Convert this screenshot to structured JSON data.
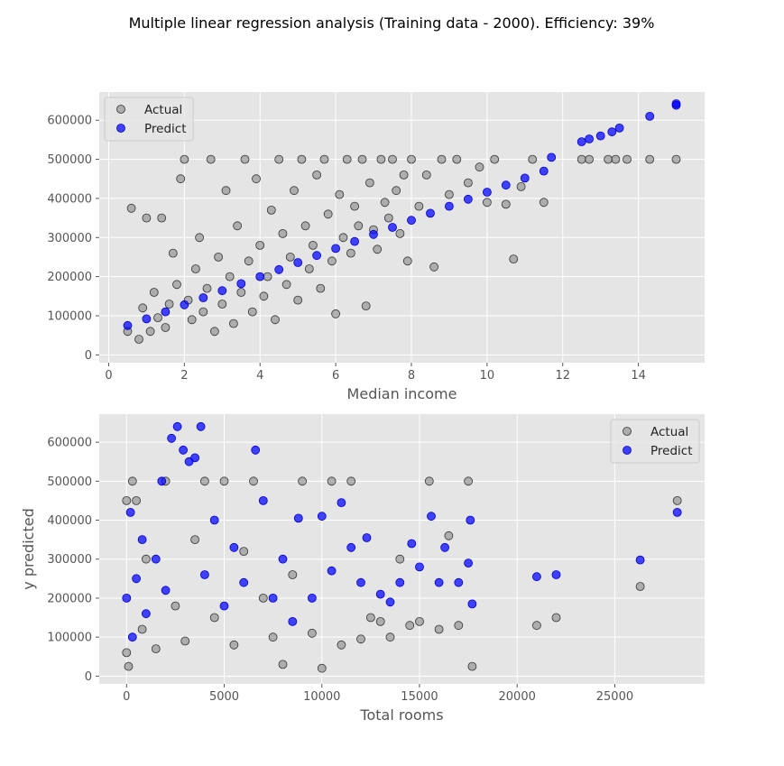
{
  "title": "Multiple linear regression analysis (Training data - 2000). Efficiency: 39%",
  "colors": {
    "actual": "#808080",
    "predict": "#0000ff",
    "panel": "#e5e5e5",
    "grid": "#ffffff"
  },
  "chart_data": [
    {
      "type": "scatter",
      "xlabel": "Median income",
      "ylabel": "",
      "xlim": [
        -0.25,
        15.75
      ],
      "ylim": [
        -20000,
        672000
      ],
      "xticks": [
        0,
        2,
        4,
        6,
        8,
        10,
        12,
        14
      ],
      "yticks": [
        0,
        100000,
        200000,
        300000,
        400000,
        500000,
        600000
      ],
      "xtick_labels": [
        "0",
        "2",
        "4",
        "6",
        "8",
        "10",
        "12",
        "14"
      ],
      "ytick_labels": [
        "0",
        "100000",
        "200000",
        "300000",
        "400000",
        "500000",
        "600000"
      ],
      "legend": {
        "position": "top-left",
        "entries": [
          "Actual",
          "Predict"
        ]
      },
      "grid": true,
      "series": [
        {
          "name": "Actual",
          "color": "#808080",
          "points": [
            [
              0.5,
              60000
            ],
            [
              0.6,
              375000
            ],
            [
              0.8,
              40000
            ],
            [
              0.9,
              120000
            ],
            [
              1.0,
              350000
            ],
            [
              1.1,
              60000
            ],
            [
              1.2,
              160000
            ],
            [
              1.3,
              95000
            ],
            [
              1.4,
              350000
            ],
            [
              1.5,
              70000
            ],
            [
              1.6,
              130000
            ],
            [
              1.7,
              260000
            ],
            [
              1.8,
              180000
            ],
            [
              1.9,
              450000
            ],
            [
              2.0,
              500000
            ],
            [
              2.1,
              140000
            ],
            [
              2.2,
              90000
            ],
            [
              2.3,
              220000
            ],
            [
              2.4,
              300000
            ],
            [
              2.5,
              110000
            ],
            [
              2.6,
              170000
            ],
            [
              2.7,
              500000
            ],
            [
              2.8,
              60000
            ],
            [
              2.9,
              250000
            ],
            [
              3.0,
              130000
            ],
            [
              3.1,
              420000
            ],
            [
              3.2,
              200000
            ],
            [
              3.3,
              80000
            ],
            [
              3.4,
              330000
            ],
            [
              3.5,
              160000
            ],
            [
              3.6,
              500000
            ],
            [
              3.7,
              240000
            ],
            [
              3.8,
              110000
            ],
            [
              3.9,
              450000
            ],
            [
              4.0,
              280000
            ],
            [
              4.1,
              150000
            ],
            [
              4.2,
              200000
            ],
            [
              4.3,
              370000
            ],
            [
              4.4,
              90000
            ],
            [
              4.5,
              500000
            ],
            [
              4.6,
              310000
            ],
            [
              4.7,
              180000
            ],
            [
              4.8,
              250000
            ],
            [
              4.9,
              420000
            ],
            [
              5.0,
              140000
            ],
            [
              5.1,
              500000
            ],
            [
              5.2,
              330000
            ],
            [
              5.3,
              220000
            ],
            [
              5.4,
              280000
            ],
            [
              5.5,
              460000
            ],
            [
              5.6,
              170000
            ],
            [
              5.7,
              500000
            ],
            [
              5.8,
              360000
            ],
            [
              5.9,
              240000
            ],
            [
              6.0,
              105000
            ],
            [
              6.1,
              410000
            ],
            [
              6.2,
              300000
            ],
            [
              6.3,
              500000
            ],
            [
              6.4,
              260000
            ],
            [
              6.5,
              380000
            ],
            [
              6.6,
              330000
            ],
            [
              6.7,
              500000
            ],
            [
              6.8,
              125000
            ],
            [
              6.9,
              440000
            ],
            [
              7.0,
              320000
            ],
            [
              7.1,
              270000
            ],
            [
              7.2,
              500000
            ],
            [
              7.3,
              390000
            ],
            [
              7.4,
              350000
            ],
            [
              7.5,
              500000
            ],
            [
              7.6,
              420000
            ],
            [
              7.7,
              310000
            ],
            [
              7.8,
              460000
            ],
            [
              7.9,
              240000
            ],
            [
              8.0,
              500000
            ],
            [
              8.2,
              380000
            ],
            [
              8.4,
              460000
            ],
            [
              8.6,
              225000
            ],
            [
              8.8,
              500000
            ],
            [
              9.0,
              410000
            ],
            [
              9.2,
              500000
            ],
            [
              9.5,
              440000
            ],
            [
              9.8,
              480000
            ],
            [
              10.0,
              390000
            ],
            [
              10.2,
              500000
            ],
            [
              10.5,
              385000
            ],
            [
              10.7,
              245000
            ],
            [
              10.9,
              430000
            ],
            [
              11.2,
              500000
            ],
            [
              11.5,
              390000
            ],
            [
              12.5,
              500000
            ],
            [
              12.7,
              500000
            ],
            [
              13.2,
              500000
            ],
            [
              13.4,
              500000
            ],
            [
              13.7,
              500000
            ],
            [
              14.3,
              500000
            ],
            [
              15.0,
              500000
            ]
          ]
        },
        {
          "name": "Predict",
          "color": "#0000ff",
          "points": [
            [
              0.5,
              75000
            ],
            [
              1.0,
              92000
            ],
            [
              1.5,
              110000
            ],
            [
              2.0,
              128000
            ],
            [
              2.5,
              146000
            ],
            [
              3.0,
              164000
            ],
            [
              3.5,
              182000
            ],
            [
              4.0,
              200000
            ],
            [
              4.5,
              218000
            ],
            [
              5.0,
              236000
            ],
            [
              5.5,
              254000
            ],
            [
              6.0,
              272000
            ],
            [
              6.5,
              290000
            ],
            [
              7.0,
              308000
            ],
            [
              7.5,
              326000
            ],
            [
              8.0,
              344000
            ],
            [
              8.5,
              362000
            ],
            [
              9.0,
              380000
            ],
            [
              9.5,
              398000
            ],
            [
              10.0,
              416000
            ],
            [
              10.5,
              434000
            ],
            [
              11.0,
              452000
            ],
            [
              11.5,
              470000
            ],
            [
              11.7,
              505000
            ],
            [
              12.5,
              545000
            ],
            [
              12.7,
              552000
            ],
            [
              13.0,
              560000
            ],
            [
              13.3,
              570000
            ],
            [
              13.5,
              580000
            ],
            [
              14.3,
              610000
            ],
            [
              15.0,
              638000
            ],
            [
              15.0,
              642000
            ]
          ]
        }
      ]
    },
    {
      "type": "scatter",
      "xlabel": "Total rooms",
      "ylabel": "y predicted",
      "xlim": [
        -1400,
        29600
      ],
      "ylim": [
        -20000,
        672000
      ],
      "xticks": [
        0,
        5000,
        10000,
        15000,
        20000,
        25000
      ],
      "yticks": [
        0,
        100000,
        200000,
        300000,
        400000,
        500000,
        600000
      ],
      "xtick_labels": [
        "0",
        "5000",
        "10000",
        "15000",
        "20000",
        "25000"
      ],
      "ytick_labels": [
        "0",
        "100000",
        "200000",
        "300000",
        "400000",
        "500000",
        "600000"
      ],
      "legend": {
        "position": "top-right",
        "entries": [
          "Actual",
          "Predict"
        ]
      },
      "grid": true,
      "series": [
        {
          "name": "Actual",
          "color": "#808080",
          "points": [
            [
              0,
              450000
            ],
            [
              0,
              60000
            ],
            [
              100,
              25000
            ],
            [
              300,
              500000
            ],
            [
              500,
              450000
            ],
            [
              800,
              120000
            ],
            [
              1000,
              300000
            ],
            [
              1500,
              70000
            ],
            [
              2000,
              500000
            ],
            [
              2500,
              180000
            ],
            [
              3000,
              90000
            ],
            [
              3500,
              350000
            ],
            [
              4000,
              500000
            ],
            [
              4500,
              150000
            ],
            [
              5000,
              500000
            ],
            [
              5500,
              80000
            ],
            [
              6000,
              320000
            ],
            [
              6500,
              500000
            ],
            [
              7000,
              200000
            ],
            [
              7500,
              100000
            ],
            [
              8000,
              30000
            ],
            [
              8500,
              260000
            ],
            [
              9000,
              500000
            ],
            [
              9500,
              110000
            ],
            [
              10000,
              20000
            ],
            [
              10500,
              500000
            ],
            [
              11000,
              80000
            ],
            [
              11500,
              500000
            ],
            [
              12000,
              95000
            ],
            [
              12500,
              150000
            ],
            [
              13000,
              140000
            ],
            [
              13500,
              100000
            ],
            [
              14000,
              300000
            ],
            [
              14500,
              130000
            ],
            [
              15000,
              140000
            ],
            [
              15500,
              500000
            ],
            [
              16000,
              120000
            ],
            [
              16500,
              360000
            ],
            [
              17000,
              130000
            ],
            [
              17500,
              500000
            ],
            [
              17700,
              25000
            ],
            [
              21000,
              130000
            ],
            [
              22000,
              150000
            ],
            [
              26300,
              230000
            ],
            [
              28200,
              450000
            ]
          ]
        },
        {
          "name": "Predict",
          "color": "#0000ff",
          "points": [
            [
              0,
              200000
            ],
            [
              200,
              420000
            ],
            [
              300,
              100000
            ],
            [
              500,
              250000
            ],
            [
              800,
              350000
            ],
            [
              1000,
              160000
            ],
            [
              1500,
              300000
            ],
            [
              1800,
              500000
            ],
            [
              2000,
              220000
            ],
            [
              2300,
              610000
            ],
            [
              2600,
              640000
            ],
            [
              2900,
              580000
            ],
            [
              3200,
              550000
            ],
            [
              3500,
              560000
            ],
            [
              3800,
              640000
            ],
            [
              4000,
              260000
            ],
            [
              4500,
              400000
            ],
            [
              5000,
              180000
            ],
            [
              5500,
              330000
            ],
            [
              6000,
              240000
            ],
            [
              6600,
              580000
            ],
            [
              7000,
              450000
            ],
            [
              7500,
              200000
            ],
            [
              8000,
              300000
            ],
            [
              8500,
              140000
            ],
            [
              8800,
              405000
            ],
            [
              9500,
              200000
            ],
            [
              10000,
              410000
            ],
            [
              10500,
              270000
            ],
            [
              11000,
              445000
            ],
            [
              11500,
              330000
            ],
            [
              12000,
              240000
            ],
            [
              12300,
              355000
            ],
            [
              13000,
              210000
            ],
            [
              13500,
              190000
            ],
            [
              14000,
              240000
            ],
            [
              14600,
              340000
            ],
            [
              15000,
              280000
            ],
            [
              15600,
              410000
            ],
            [
              16000,
              240000
            ],
            [
              16300,
              330000
            ],
            [
              17000,
              240000
            ],
            [
              17500,
              290000
            ],
            [
              17600,
              400000
            ],
            [
              17700,
              185000
            ],
            [
              21000,
              255000
            ],
            [
              22000,
              260000
            ],
            [
              26300,
              298000
            ],
            [
              28200,
              420000
            ]
          ]
        }
      ]
    }
  ]
}
